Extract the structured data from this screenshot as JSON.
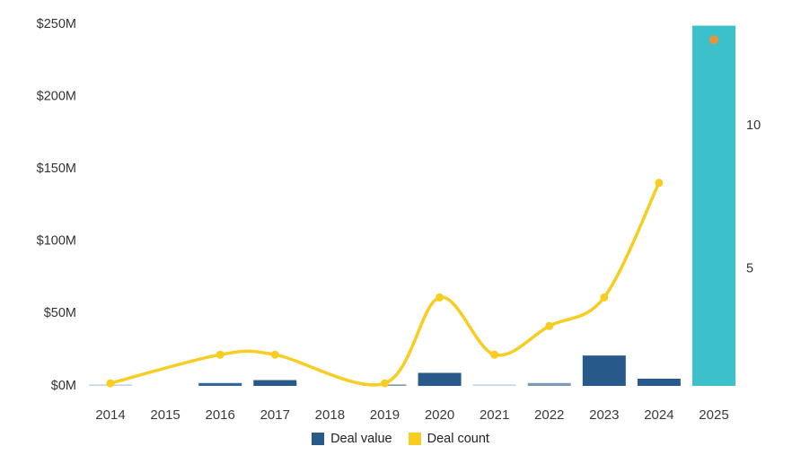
{
  "chart_data": {
    "type": "combo-bar-line",
    "title": "",
    "categories": [
      "2014",
      "2015",
      "2016",
      "2017",
      "2018",
      "2019",
      "2020",
      "2021",
      "2022",
      "2023",
      "2024",
      "2025"
    ],
    "series": [
      {
        "name": "Deal value",
        "type": "bar",
        "axis": "left",
        "unit": "USD millions",
        "values": [
          1,
          null,
          2,
          4,
          null,
          1,
          9,
          1,
          2,
          21,
          5,
          249
        ],
        "bar_colors": [
          "#C6D4E2",
          null,
          "#336896",
          "#27598A",
          null,
          "#7E99B4",
          "#27598A",
          "#C6D4E2",
          "#7E99B4",
          "#27598A",
          "#27598A",
          "#3CC0C9"
        ]
      },
      {
        "name": "Deal count",
        "type": "line",
        "axis": "right",
        "values": [
          1,
          null,
          2,
          2,
          null,
          1,
          4,
          2,
          3,
          4,
          8,
          13
        ],
        "color": "#F6CD20",
        "line_ends_at": "2024",
        "highlight_point": {
          "category": "2025",
          "value": 13,
          "color": "#E8943C"
        }
      }
    ],
    "left_axis": {
      "range": [
        0,
        250
      ],
      "ticks": [
        {
          "label": "$0M",
          "value": 0
        },
        {
          "label": "$50M",
          "value": 50
        },
        {
          "label": "$100M",
          "value": 100
        },
        {
          "label": "$150M",
          "value": 150
        },
        {
          "label": "$200M",
          "value": 200
        },
        {
          "label": "$250M",
          "value": 250
        }
      ]
    },
    "right_axis": {
      "ticks": [
        {
          "label": "5",
          "value": 5
        },
        {
          "label": "10",
          "value": 10
        }
      ]
    },
    "grid": false,
    "legend": {
      "position": "bottom",
      "items": [
        {
          "label": "Deal value",
          "color": "#27598A"
        },
        {
          "label": "Deal count",
          "color": "#F6CD20"
        }
      ]
    }
  }
}
